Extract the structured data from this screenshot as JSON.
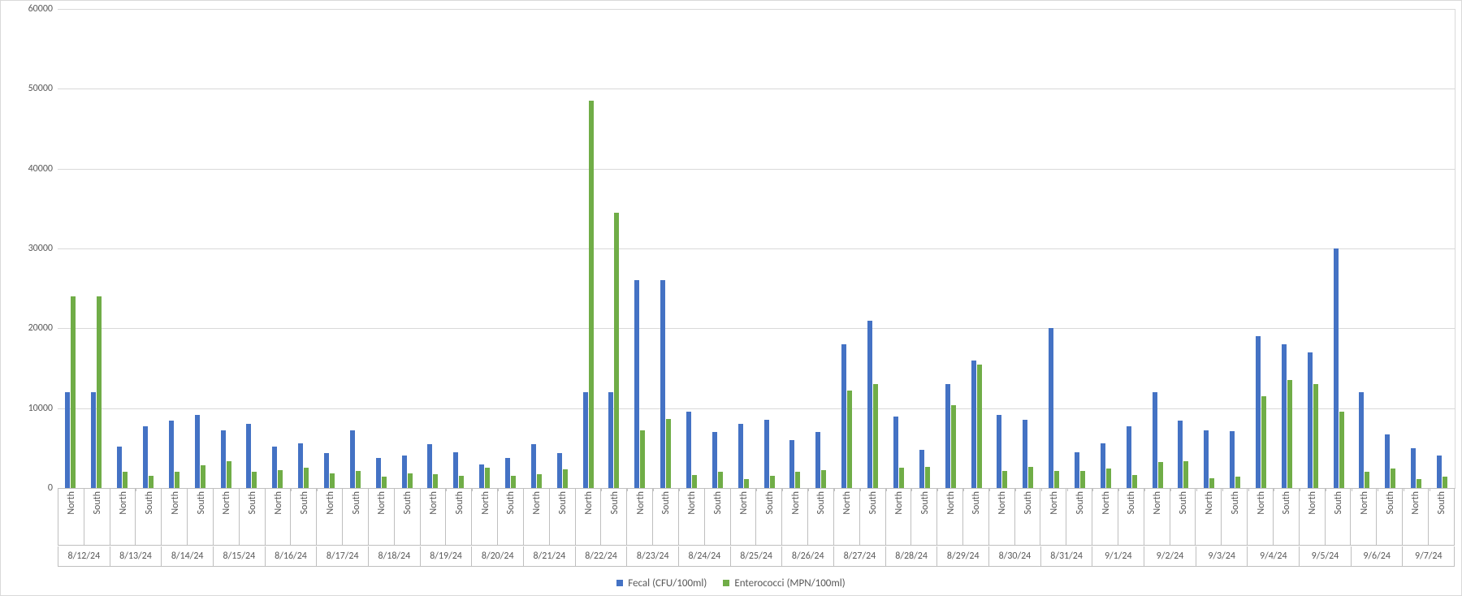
{
  "chart": {
    "type": "bar",
    "background_color": "#ffffff",
    "grid_color": "#d9d9d9",
    "axis_line_color": "#bfbfbf",
    "label_color": "#595959",
    "label_fontsize": 12,
    "ylim": [
      0,
      60000
    ],
    "ytick_step": 10000,
    "yticks": [
      0,
      10000,
      20000,
      30000,
      40000,
      50000,
      60000
    ],
    "series": [
      {
        "name": "Fecal (CFU/100ml)",
        "color": "#4472c4"
      },
      {
        "name": "Enterococci (MPN/100ml)",
        "color": "#70ad47"
      }
    ],
    "sublabels": [
      "North",
      "South"
    ],
    "dates": [
      "8/12/24",
      "8/13/24",
      "8/14/24",
      "8/15/24",
      "8/16/24",
      "8/17/24",
      "8/18/24",
      "8/19/24",
      "8/20/24",
      "8/21/24",
      "8/22/24",
      "8/23/24",
      "8/24/24",
      "8/25/24",
      "8/26/24",
      "8/27/24",
      "8/28/24",
      "8/29/24",
      "8/30/24",
      "8/31/24",
      "9/1/24",
      "9/2/24",
      "9/3/24",
      "9/4/24",
      "9/5/24",
      "9/6/24",
      "9/7/24"
    ],
    "data": [
      {
        "date": "8/12/24",
        "loc": "North",
        "fecal": 12000,
        "entero": 24000
      },
      {
        "date": "8/12/24",
        "loc": "South",
        "fecal": 12000,
        "entero": 24000
      },
      {
        "date": "8/13/24",
        "loc": "North",
        "fecal": 5200,
        "entero": 2000
      },
      {
        "date": "8/13/24",
        "loc": "South",
        "fecal": 7700,
        "entero": 1500
      },
      {
        "date": "8/14/24",
        "loc": "North",
        "fecal": 8400,
        "entero": 2000
      },
      {
        "date": "8/14/24",
        "loc": "South",
        "fecal": 9200,
        "entero": 2800
      },
      {
        "date": "8/15/24",
        "loc": "North",
        "fecal": 7200,
        "entero": 3400
      },
      {
        "date": "8/15/24",
        "loc": "South",
        "fecal": 8000,
        "entero": 2000
      },
      {
        "date": "8/16/24",
        "loc": "North",
        "fecal": 5200,
        "entero": 2200
      },
      {
        "date": "8/16/24",
        "loc": "South",
        "fecal": 5600,
        "entero": 2500
      },
      {
        "date": "8/17/24",
        "loc": "North",
        "fecal": 4400,
        "entero": 1800
      },
      {
        "date": "8/17/24",
        "loc": "South",
        "fecal": 7200,
        "entero": 2100
      },
      {
        "date": "8/18/24",
        "loc": "North",
        "fecal": 3800,
        "entero": 1400
      },
      {
        "date": "8/18/24",
        "loc": "South",
        "fecal": 4100,
        "entero": 1800
      },
      {
        "date": "8/19/24",
        "loc": "North",
        "fecal": 5500,
        "entero": 1700
      },
      {
        "date": "8/19/24",
        "loc": "South",
        "fecal": 4500,
        "entero": 1500
      },
      {
        "date": "8/20/24",
        "loc": "North",
        "fecal": 2900,
        "entero": 2500
      },
      {
        "date": "8/20/24",
        "loc": "South",
        "fecal": 3800,
        "entero": 1500
      },
      {
        "date": "8/21/24",
        "loc": "North",
        "fecal": 5500,
        "entero": 1700
      },
      {
        "date": "8/21/24",
        "loc": "South",
        "fecal": 4400,
        "entero": 2300
      },
      {
        "date": "8/22/24",
        "loc": "North",
        "fecal": 12000,
        "entero": 48500
      },
      {
        "date": "8/22/24",
        "loc": "South",
        "fecal": 12000,
        "entero": 34500
      },
      {
        "date": "8/23/24",
        "loc": "North",
        "fecal": 26000,
        "entero": 7200
      },
      {
        "date": "8/23/24",
        "loc": "South",
        "fecal": 26000,
        "entero": 8600
      },
      {
        "date": "8/24/24",
        "loc": "North",
        "fecal": 9600,
        "entero": 1600
      },
      {
        "date": "8/24/24",
        "loc": "South",
        "fecal": 7000,
        "entero": 2000
      },
      {
        "date": "8/25/24",
        "loc": "North",
        "fecal": 8000,
        "entero": 1100
      },
      {
        "date": "8/25/24",
        "loc": "South",
        "fecal": 8500,
        "entero": 1500
      },
      {
        "date": "8/26/24",
        "loc": "North",
        "fecal": 6000,
        "entero": 2000
      },
      {
        "date": "8/26/24",
        "loc": "South",
        "fecal": 7000,
        "entero": 2200
      },
      {
        "date": "8/27/24",
        "loc": "North",
        "fecal": 18000,
        "entero": 12200
      },
      {
        "date": "8/27/24",
        "loc": "South",
        "fecal": 21000,
        "entero": 13000
      },
      {
        "date": "8/28/24",
        "loc": "North",
        "fecal": 9000,
        "entero": 2500
      },
      {
        "date": "8/28/24",
        "loc": "South",
        "fecal": 4800,
        "entero": 2600
      },
      {
        "date": "8/29/24",
        "loc": "North",
        "fecal": 13000,
        "entero": 10400
      },
      {
        "date": "8/29/24",
        "loc": "South",
        "fecal": 16000,
        "entero": 15500
      },
      {
        "date": "8/30/24",
        "loc": "North",
        "fecal": 9200,
        "entero": 2100
      },
      {
        "date": "8/30/24",
        "loc": "South",
        "fecal": 8500,
        "entero": 2600
      },
      {
        "date": "8/31/24",
        "loc": "North",
        "fecal": 20000,
        "entero": 2100
      },
      {
        "date": "8/31/24",
        "loc": "South",
        "fecal": 4500,
        "entero": 2100
      },
      {
        "date": "9/1/24",
        "loc": "North",
        "fecal": 5600,
        "entero": 2400
      },
      {
        "date": "9/1/24",
        "loc": "South",
        "fecal": 7700,
        "entero": 1600
      },
      {
        "date": "9/2/24",
        "loc": "North",
        "fecal": 12000,
        "entero": 3300
      },
      {
        "date": "9/2/24",
        "loc": "South",
        "fecal": 8400,
        "entero": 3400
      },
      {
        "date": "9/3/24",
        "loc": "North",
        "fecal": 7200,
        "entero": 1200
      },
      {
        "date": "9/3/24",
        "loc": "South",
        "fecal": 7100,
        "entero": 1400
      },
      {
        "date": "9/4/24",
        "loc": "North",
        "fecal": 19000,
        "entero": 11500
      },
      {
        "date": "9/4/24",
        "loc": "South",
        "fecal": 18000,
        "entero": 13500
      },
      {
        "date": "9/5/24",
        "loc": "North",
        "fecal": 17000,
        "entero": 13000
      },
      {
        "date": "9/5/24",
        "loc": "South",
        "fecal": 30000,
        "entero": 9600
      },
      {
        "date": "9/6/24",
        "loc": "North",
        "fecal": 12000,
        "entero": 2000
      },
      {
        "date": "9/6/24",
        "loc": "South",
        "fecal": 6700,
        "entero": 2400
      },
      {
        "date": "9/7/24",
        "loc": "North",
        "fecal": 5000,
        "entero": 1100
      },
      {
        "date": "9/7/24",
        "loc": "South",
        "fecal": 4100,
        "entero": 1400
      }
    ]
  }
}
